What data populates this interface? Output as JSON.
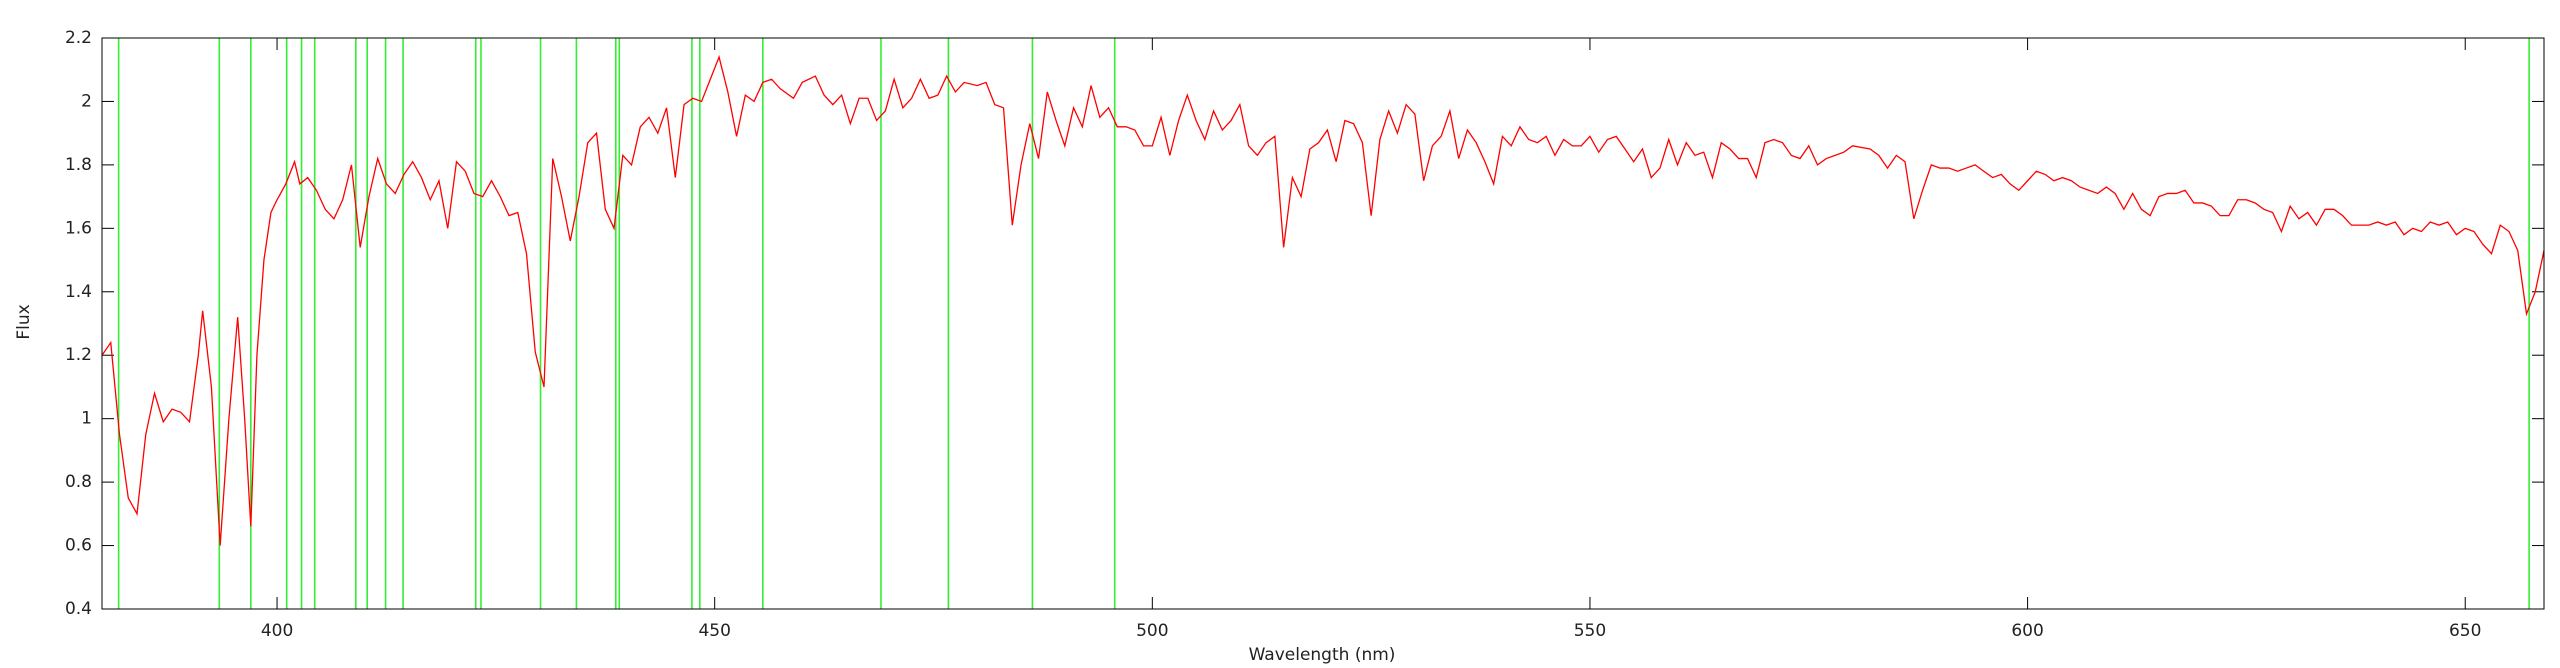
{
  "chart_data": {
    "type": "line",
    "xlabel": "Wavelength (nm)",
    "ylabel": "Flux",
    "xlim": [
      380,
      659
    ],
    "ylim": [
      0.4,
      2.2
    ],
    "xticks": [
      400,
      450,
      500,
      550,
      600,
      650
    ],
    "yticks": [
      0.4,
      0.6,
      0.8,
      1,
      1.2,
      1.4,
      1.6,
      1.8,
      2,
      2.2
    ],
    "vlines": [
      381.9,
      393.4,
      397.0,
      401.1,
      402.8,
      404.3,
      409.0,
      410.3,
      412.4,
      414.4,
      422.7,
      423.3,
      430.1,
      434.2,
      438.7,
      439.1,
      447.4,
      448.3,
      455.5,
      469.0,
      476.7,
      486.3,
      495.7,
      657.3
    ],
    "vline_color": "#33ee33",
    "x": [
      380,
      381,
      382,
      383,
      384,
      385,
      386,
      387,
      388,
      389,
      390,
      391,
      391.5,
      392.5,
      393.5,
      394.5,
      395.5,
      396.3,
      397,
      397.7,
      398.5,
      399.3,
      400,
      401,
      402,
      402.6,
      403.5,
      404.5,
      405.5,
      406.5,
      407.5,
      408.5,
      409.5,
      410.5,
      411.5,
      412.5,
      413.5,
      414.5,
      415.5,
      416.5,
      417.5,
      418.5,
      419.5,
      420.5,
      421.5,
      422.5,
      423.5,
      424.5,
      425.5,
      426.5,
      427.5,
      428.5,
      429.5,
      430.5,
      431.5,
      432.5,
      433.5,
      434.5,
      435.5,
      436.5,
      437.5,
      438.5,
      439.5,
      440.5,
      441.5,
      442.5,
      443.5,
      444.5,
      445.5,
      446.5,
      447.5,
      448.5,
      449.5,
      450.5,
      451.5,
      452.5,
      453.5,
      454.5,
      455.5,
      456.5,
      457.5,
      459,
      460,
      461.5,
      462.5,
      463.5,
      464.5,
      465.5,
      466.5,
      467.5,
      468.5,
      469.5,
      470.5,
      471.5,
      472.5,
      473.5,
      474.5,
      475.5,
      476.5,
      477.5,
      478.5,
      480,
      481,
      482,
      483,
      484,
      485,
      486,
      487,
      488,
      489,
      490,
      491,
      492,
      493,
      494,
      495,
      496,
      497,
      498,
      499,
      500,
      501,
      502,
      503,
      504,
      505,
      506,
      507,
      508,
      509,
      510,
      511,
      512,
      513,
      514,
      515,
      516,
      517,
      518,
      519,
      520,
      521,
      522,
      523,
      524,
      525,
      526,
      527,
      528,
      529,
      530,
      531,
      532,
      533,
      534,
      535,
      536,
      537,
      538,
      539,
      540,
      541,
      542,
      543,
      544,
      545,
      546,
      547,
      548,
      549,
      550,
      551,
      552,
      553,
      554,
      555,
      556,
      557,
      558,
      559,
      560,
      561,
      562,
      563,
      564,
      565,
      566,
      567,
      568,
      569,
      570,
      571,
      572,
      573,
      574,
      575,
      576,
      577,
      578,
      579,
      580,
      582,
      583,
      584,
      585,
      586,
      587,
      588,
      589,
      590,
      591,
      592,
      593,
      594,
      595,
      596,
      597,
      598,
      599,
      600,
      601,
      602,
      603,
      604,
      605,
      606,
      607,
      608,
      609,
      610,
      611,
      612,
      613,
      614,
      615,
      616,
      617,
      618,
      619,
      620,
      621,
      622,
      623,
      624,
      625,
      626,
      627,
      628,
      629,
      630,
      631,
      632,
      633,
      634,
      635,
      636,
      637,
      638,
      639,
      640,
      641,
      642,
      643,
      644,
      645,
      646,
      647,
      648,
      649,
      650,
      651,
      652,
      653,
      654,
      655,
      656,
      657,
      658,
      659
    ],
    "series": [
      {
        "color": "#ff0000",
        "values": [
          1.2,
          1.24,
          0.95,
          0.75,
          0.7,
          0.95,
          1.08,
          0.99,
          1.03,
          1.02,
          0.99,
          1.2,
          1.34,
          1.1,
          0.6,
          1.0,
          1.32,
          1.0,
          0.66,
          1.2,
          1.5,
          1.65,
          1.69,
          1.74,
          1.81,
          1.74,
          1.76,
          1.72,
          1.66,
          1.63,
          1.69,
          1.8,
          1.54,
          1.7,
          1.82,
          1.74,
          1.71,
          1.77,
          1.81,
          1.76,
          1.69,
          1.75,
          1.6,
          1.81,
          1.78,
          1.71,
          1.7,
          1.75,
          1.7,
          1.64,
          1.65,
          1.52,
          1.21,
          1.1,
          1.82,
          1.7,
          1.56,
          1.7,
          1.87,
          1.9,
          1.66,
          1.6,
          1.83,
          1.8,
          1.92,
          1.95,
          1.9,
          1.98,
          1.76,
          1.99,
          2.01,
          2.0,
          2.07,
          2.14,
          2.03,
          1.89,
          2.02,
          2.0,
          2.06,
          2.07,
          2.04,
          2.01,
          2.06,
          2.08,
          2.02,
          1.99,
          2.02,
          1.93,
          2.01,
          2.01,
          1.94,
          1.97,
          2.07,
          1.98,
          2.01,
          2.07,
          2.01,
          2.02,
          2.08,
          2.03,
          2.06,
          2.05,
          2.06,
          1.99,
          1.98,
          1.61,
          1.8,
          1.93,
          1.82,
          2.03,
          1.94,
          1.86,
          1.98,
          1.92,
          2.05,
          1.95,
          1.98,
          1.92,
          1.92,
          1.91,
          1.86,
          1.86,
          1.95,
          1.83,
          1.94,
          2.02,
          1.94,
          1.88,
          1.97,
          1.91,
          1.94,
          1.99,
          1.86,
          1.83,
          1.87,
          1.89,
          1.54,
          1.76,
          1.7,
          1.85,
          1.87,
          1.91,
          1.81,
          1.94,
          1.93,
          1.87,
          1.64,
          1.88,
          1.97,
          1.9,
          1.99,
          1.96,
          1.75,
          1.86,
          1.89,
          1.97,
          1.82,
          1.91,
          1.87,
          1.81,
          1.74,
          1.89,
          1.86,
          1.92,
          1.88,
          1.87,
          1.89,
          1.83,
          1.88,
          1.86,
          1.86,
          1.89,
          1.84,
          1.88,
          1.89,
          1.85,
          1.81,
          1.85,
          1.76,
          1.79,
          1.88,
          1.8,
          1.87,
          1.83,
          1.84,
          1.76,
          1.87,
          1.85,
          1.82,
          1.82,
          1.76,
          1.87,
          1.88,
          1.87,
          1.83,
          1.82,
          1.86,
          1.8,
          1.82,
          1.83,
          1.84,
          1.86,
          1.85,
          1.83,
          1.79,
          1.83,
          1.81,
          1.63,
          1.72,
          1.8,
          1.79,
          1.79,
          1.78,
          1.79,
          1.8,
          1.78,
          1.76,
          1.77,
          1.74,
          1.72,
          1.75,
          1.78,
          1.77,
          1.75,
          1.76,
          1.75,
          1.73,
          1.72,
          1.71,
          1.73,
          1.71,
          1.66,
          1.71,
          1.66,
          1.64,
          1.7,
          1.71,
          1.71,
          1.72,
          1.68,
          1.68,
          1.67,
          1.64,
          1.64,
          1.69,
          1.69,
          1.68,
          1.66,
          1.65,
          1.59,
          1.67,
          1.63,
          1.65,
          1.61,
          1.66,
          1.66,
          1.64,
          1.61,
          1.61,
          1.61,
          1.62,
          1.61,
          1.62,
          1.58,
          1.6,
          1.59,
          1.62,
          1.61,
          1.62,
          1.58,
          1.6,
          1.59,
          1.55,
          1.52,
          1.61,
          1.59,
          1.53,
          1.33,
          1.4,
          1.53
        ]
      }
    ]
  }
}
